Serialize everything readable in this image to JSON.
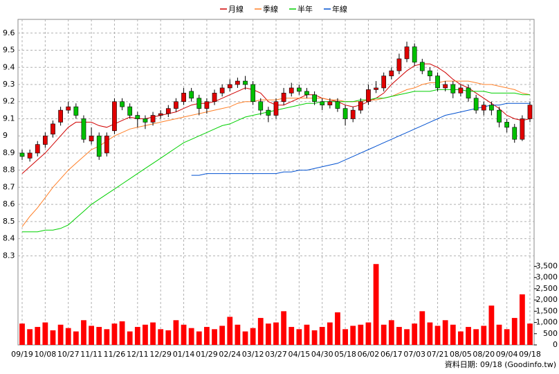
{
  "chart_data": {
    "type": "candlestick",
    "categories": [
      "09/19",
      null,
      null,
      "10/08",
      null,
      null,
      "10/27",
      null,
      null,
      "11/11",
      null,
      null,
      "11/26",
      null,
      null,
      "12/11",
      null,
      null,
      "12/29",
      null,
      null,
      "01/14",
      null,
      null,
      "01/29",
      null,
      null,
      "02/24",
      null,
      null,
      "03/12",
      null,
      null,
      "03/27",
      null,
      null,
      "04/15",
      null,
      null,
      "04/30",
      null,
      null,
      "05/18",
      null,
      null,
      "06/02",
      null,
      null,
      "06/17",
      null,
      null,
      "07/03",
      null,
      null,
      "07/21",
      null,
      null,
      "08/05",
      null,
      null,
      "08/20",
      null,
      null,
      "09/04",
      null,
      null,
      "09/18"
    ],
    "open": [
      8.9,
      8.87,
      8.9,
      8.95,
      9.01,
      9.08,
      9.15,
      9.17,
      9.1,
      8.97,
      9.0,
      8.9,
      9.03,
      9.2,
      9.17,
      9.12,
      9.1,
      9.08,
      9.12,
      9.13,
      9.16,
      9.2,
      9.26,
      9.22,
      9.16,
      9.2,
      9.25,
      9.28,
      9.3,
      9.32,
      9.3,
      9.2,
      9.15,
      9.12,
      9.2,
      9.25,
      9.28,
      9.26,
      9.24,
      9.2,
      9.18,
      9.2,
      9.16,
      9.1,
      9.15,
      9.2,
      9.27,
      9.28,
      9.35,
      9.38,
      9.45,
      9.52,
      9.43,
      9.38,
      9.35,
      9.28,
      9.3,
      9.25,
      9.28,
      9.22,
      9.15,
      9.18,
      9.15,
      9.08,
      9.05,
      8.98,
      9.1
    ],
    "high": [
      8.92,
      8.92,
      8.97,
      9.02,
      9.09,
      9.17,
      9.2,
      9.19,
      9.12,
      9.05,
      9.02,
      9.02,
      9.22,
      9.22,
      9.19,
      9.14,
      9.12,
      9.14,
      9.15,
      9.18,
      9.22,
      9.28,
      9.28,
      9.24,
      9.22,
      9.27,
      9.3,
      9.33,
      9.34,
      9.35,
      9.32,
      9.22,
      9.17,
      9.22,
      9.28,
      9.31,
      9.3,
      9.28,
      9.26,
      9.22,
      9.22,
      9.22,
      9.18,
      9.17,
      9.22,
      9.3,
      9.32,
      9.37,
      9.4,
      9.48,
      9.55,
      9.54,
      9.45,
      9.4,
      9.37,
      9.32,
      9.32,
      9.3,
      9.3,
      9.24,
      9.2,
      9.2,
      9.17,
      9.1,
      9.07,
      9.12,
      9.2
    ],
    "low": [
      8.86,
      8.85,
      8.88,
      8.93,
      8.99,
      9.06,
      9.13,
      9.1,
      8.96,
      8.95,
      8.86,
      8.88,
      9.01,
      9.15,
      9.1,
      9.05,
      9.04,
      9.06,
      9.1,
      9.11,
      9.14,
      9.18,
      9.2,
      9.12,
      9.13,
      9.18,
      9.23,
      9.26,
      9.28,
      9.27,
      9.18,
      9.12,
      9.08,
      9.1,
      9.18,
      9.23,
      9.24,
      9.22,
      9.18,
      9.15,
      9.16,
      9.14,
      9.06,
      9.08,
      9.13,
      9.18,
      9.25,
      9.26,
      9.33,
      9.36,
      9.43,
      9.41,
      9.36,
      9.32,
      9.26,
      9.26,
      9.22,
      9.23,
      9.2,
      9.13,
      9.12,
      9.12,
      9.05,
      9.02,
      8.96,
      8.97,
      9.08
    ],
    "close": [
      8.88,
      8.9,
      8.95,
      9.0,
      9.07,
      9.15,
      9.17,
      9.12,
      8.98,
      9.0,
      8.88,
      9.0,
      9.2,
      9.17,
      9.12,
      9.1,
      9.08,
      9.12,
      9.13,
      9.16,
      9.2,
      9.25,
      9.22,
      9.16,
      9.2,
      9.25,
      9.28,
      9.3,
      9.32,
      9.3,
      9.2,
      9.15,
      9.12,
      9.2,
      9.25,
      9.28,
      9.26,
      9.24,
      9.2,
      9.18,
      9.2,
      9.16,
      9.1,
      9.15,
      9.2,
      9.27,
      9.28,
      9.35,
      9.38,
      9.45,
      9.52,
      9.43,
      9.38,
      9.35,
      9.28,
      9.3,
      9.25,
      9.28,
      9.22,
      9.15,
      9.18,
      9.15,
      9.08,
      9.05,
      8.98,
      9.1,
      9.18
    ],
    "up_color": "#e00000",
    "down_color": "#00c000",
    "ylim": [
      7.78,
      9.68
    ],
    "yticks": [
      8.3,
      8.4,
      8.5,
      8.6,
      8.7,
      8.8,
      8.9,
      9,
      9.1,
      9.2,
      9.3,
      9.4,
      9.5,
      9.6
    ],
    "grid": true,
    "series": [
      {
        "name": "月線",
        "color": "#d00000",
        "values": [
          8.78,
          8.82,
          8.86,
          8.9,
          8.95,
          9.0,
          9.05,
          9.08,
          9.08,
          9.08,
          9.06,
          9.05,
          9.07,
          9.09,
          9.11,
          9.1,
          9.1,
          9.11,
          9.12,
          9.13,
          9.14,
          9.16,
          9.18,
          9.19,
          9.19,
          9.2,
          9.22,
          9.24,
          9.26,
          9.28,
          9.27,
          9.25,
          9.2,
          9.18,
          9.18,
          9.2,
          9.22,
          9.24,
          9.24,
          9.22,
          9.21,
          9.2,
          9.18,
          9.17,
          9.18,
          9.2,
          9.22,
          9.25,
          9.3,
          9.34,
          9.38,
          9.41,
          9.42,
          9.42,
          9.4,
          9.37,
          9.33,
          9.3,
          9.28,
          9.25,
          9.22,
          9.19,
          9.16,
          9.12,
          9.1,
          9.09,
          9.1
        ]
      },
      {
        "name": "季線",
        "color": "#ff7f27",
        "values": [
          8.47,
          8.53,
          8.58,
          8.64,
          8.7,
          8.75,
          8.8,
          8.84,
          8.88,
          8.92,
          8.94,
          8.97,
          9.0,
          9.02,
          9.04,
          9.05,
          9.06,
          9.07,
          9.08,
          9.09,
          9.1,
          9.11,
          9.12,
          9.13,
          9.14,
          9.15,
          9.16,
          9.17,
          9.19,
          9.2,
          9.2,
          9.21,
          9.21,
          9.21,
          9.22,
          9.22,
          9.22,
          9.22,
          9.22,
          9.22,
          9.21,
          9.21,
          9.2,
          9.2,
          9.2,
          9.21,
          9.21,
          9.22,
          9.23,
          9.25,
          9.27,
          9.28,
          9.3,
          9.31,
          9.31,
          9.32,
          9.32,
          9.32,
          9.32,
          9.31,
          9.3,
          9.3,
          9.29,
          9.28,
          9.27,
          9.25,
          9.24
        ]
      },
      {
        "name": "半年",
        "color": "#00d000",
        "values": [
          8.44,
          8.44,
          8.44,
          8.45,
          8.45,
          8.46,
          8.48,
          8.52,
          8.56,
          8.6,
          8.63,
          8.66,
          8.69,
          8.72,
          8.75,
          8.78,
          8.81,
          8.84,
          8.87,
          8.9,
          8.93,
          8.96,
          8.98,
          9.0,
          9.02,
          9.04,
          9.06,
          9.07,
          9.09,
          9.11,
          9.12,
          9.13,
          9.14,
          9.15,
          9.16,
          9.17,
          9.18,
          9.19,
          9.19,
          9.2,
          9.2,
          9.2,
          9.2,
          9.2,
          9.21,
          9.21,
          9.22,
          9.22,
          9.23,
          9.24,
          9.25,
          9.26,
          9.26,
          9.26,
          9.27,
          9.27,
          9.27,
          9.27,
          9.26,
          9.26,
          9.26,
          9.25,
          9.25,
          9.25,
          9.25,
          9.24,
          9.24
        ]
      },
      {
        "name": "年線",
        "color": "#0050d0",
        "values": [
          null,
          null,
          null,
          null,
          null,
          null,
          null,
          null,
          null,
          null,
          null,
          null,
          null,
          null,
          null,
          null,
          null,
          null,
          null,
          null,
          null,
          null,
          8.77,
          8.77,
          8.78,
          8.78,
          8.78,
          8.78,
          8.78,
          8.78,
          8.78,
          8.78,
          8.78,
          8.78,
          8.79,
          8.79,
          8.8,
          8.8,
          8.81,
          8.82,
          8.83,
          8.84,
          8.86,
          8.88,
          8.9,
          8.92,
          8.94,
          8.96,
          8.98,
          9.0,
          9.02,
          9.04,
          9.06,
          9.08,
          9.1,
          9.12,
          9.13,
          9.14,
          9.15,
          9.16,
          9.17,
          9.18,
          9.18,
          9.19,
          9.19,
          9.19,
          9.19
        ]
      }
    ],
    "volume": {
      "color": "#ff0000",
      "values": [
        950,
        700,
        800,
        1000,
        650,
        900,
        750,
        600,
        1100,
        850,
        800,
        700,
        950,
        1050,
        600,
        800,
        900,
        1000,
        700,
        650,
        1100,
        900,
        750,
        600,
        800,
        700,
        850,
        1250,
        900,
        600,
        750,
        1200,
        950,
        1000,
        1500,
        800,
        700,
        900,
        650,
        800,
        1000,
        1450,
        700,
        850,
        900,
        1000,
        3600,
        900,
        1100,
        800,
        700,
        950,
        1500,
        1000,
        850,
        1100,
        900,
        600,
        800,
        700,
        850,
        1750,
        900,
        700,
        1200,
        2250,
        950
      ],
      "ylim": [
        0,
        3700
      ],
      "yticks": [
        0,
        500,
        {
          "value": 1000,
          "label": "1,000"
        },
        {
          "value": 1500,
          "label": "1,500"
        },
        {
          "value": 2000,
          "label": "2,000"
        },
        {
          "value": 2500,
          "label": "2,500"
        },
        {
          "value": 3000,
          "label": "3,000"
        },
        {
          "value": 3500,
          "label": "3,500"
        }
      ]
    },
    "footer": "資料日期: 09/18 (Goodinfo.tw)"
  }
}
